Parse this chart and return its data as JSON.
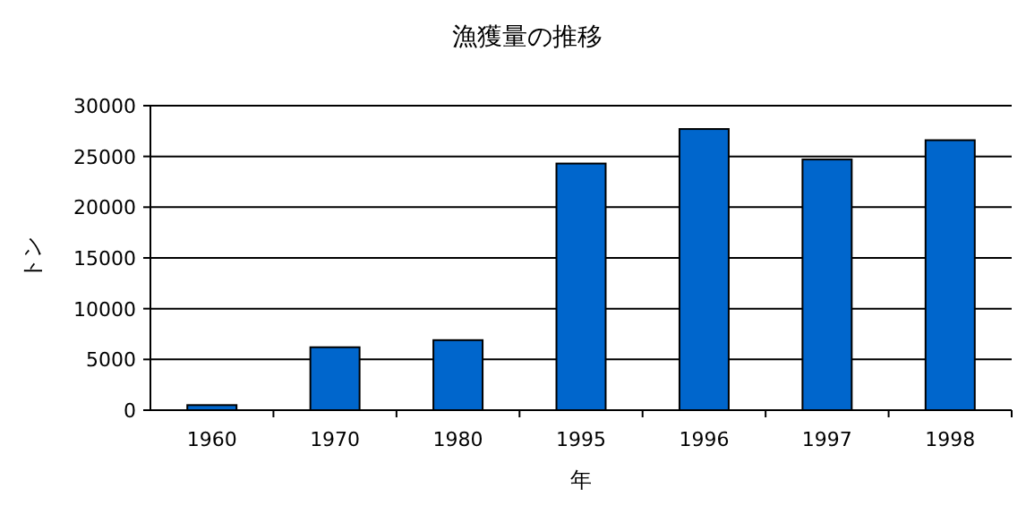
{
  "chart_data": {
    "type": "bar",
    "title": "漁獲量の推移",
    "xlabel": "年",
    "ylabel": "トン",
    "categories": [
      "1960",
      "1970",
      "1980",
      "1995",
      "1996",
      "1997",
      "1998"
    ],
    "values": [
      500,
      6200,
      6900,
      24300,
      27700,
      24700,
      26600
    ],
    "color": "#0066cc",
    "ylim": [
      0,
      30000
    ],
    "yticks": [
      0,
      5000,
      10000,
      15000,
      20000,
      25000,
      30000
    ],
    "grid": "y"
  }
}
